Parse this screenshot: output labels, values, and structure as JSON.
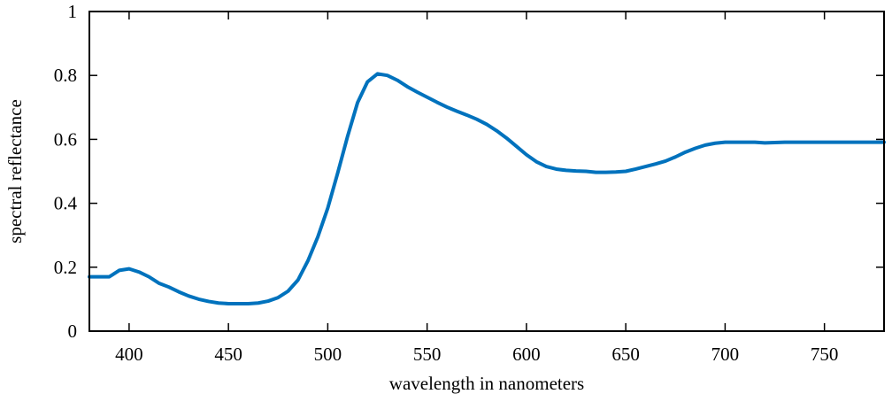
{
  "chart_data": {
    "type": "line",
    "title": "",
    "xlabel": "wavelength in nanometers",
    "ylabel": "spectral reflectance",
    "xlim": [
      380,
      780
    ],
    "ylim": [
      0,
      1
    ],
    "grid": false,
    "xticks": [
      400,
      450,
      500,
      550,
      600,
      650,
      700,
      750
    ],
    "yticks": [
      0,
      0.2,
      0.4,
      0.6,
      0.8,
      1
    ],
    "xtick_labels": [
      "400",
      "450",
      "500",
      "550",
      "600",
      "650",
      "700",
      "750"
    ],
    "ytick_labels": [
      "0",
      "0.2",
      "0.4",
      "0.6",
      "0.8",
      "1"
    ],
    "line_color": "#0072bd",
    "series": [
      {
        "x": [
          380,
          385,
          390,
          395,
          400,
          405,
          410,
          415,
          420,
          425,
          430,
          435,
          440,
          445,
          450,
          455,
          460,
          465,
          470,
          475,
          480,
          485,
          490,
          495,
          500,
          505,
          510,
          515,
          520,
          525,
          530,
          535,
          540,
          545,
          550,
          555,
          560,
          565,
          570,
          575,
          580,
          585,
          590,
          595,
          600,
          605,
          610,
          615,
          620,
          625,
          630,
          635,
          640,
          645,
          650,
          655,
          660,
          665,
          670,
          675,
          680,
          685,
          690,
          695,
          700,
          705,
          710,
          715,
          720,
          725,
          730,
          735,
          740,
          745,
          750,
          755,
          760,
          765,
          770,
          775,
          780
        ],
        "y": [
          0.17,
          0.17,
          0.17,
          0.19,
          0.195,
          0.185,
          0.17,
          0.15,
          0.138,
          0.123,
          0.11,
          0.1,
          0.093,
          0.088,
          0.086,
          0.086,
          0.086,
          0.088,
          0.094,
          0.105,
          0.125,
          0.16,
          0.22,
          0.295,
          0.385,
          0.495,
          0.61,
          0.715,
          0.78,
          0.805,
          0.8,
          0.785,
          0.765,
          0.748,
          0.732,
          0.716,
          0.701,
          0.688,
          0.676,
          0.663,
          0.647,
          0.627,
          0.604,
          0.578,
          0.552,
          0.53,
          0.515,
          0.507,
          0.503,
          0.501,
          0.5,
          0.497,
          0.497,
          0.498,
          0.5,
          0.507,
          0.515,
          0.523,
          0.532,
          0.545,
          0.56,
          0.572,
          0.582,
          0.588,
          0.591,
          0.591,
          0.591,
          0.591,
          0.589,
          0.59,
          0.591,
          0.591,
          0.591,
          0.591,
          0.591,
          0.591,
          0.591,
          0.591,
          0.591,
          0.591,
          0.591
        ]
      }
    ]
  }
}
